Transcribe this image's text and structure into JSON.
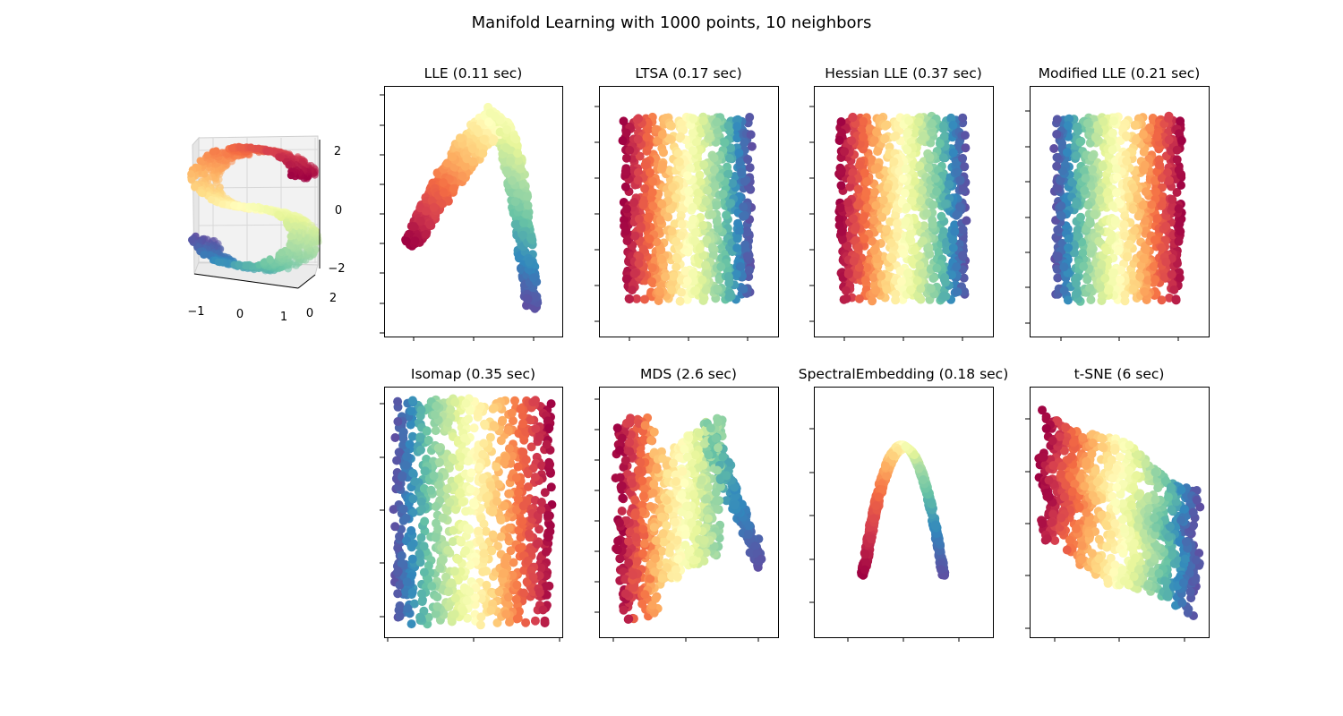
{
  "figure_title": "Manifold Learning with 1000 points, 10 neighbors",
  "colors": {
    "colormap": "Spectral",
    "frame": "#000000",
    "pane": "#f0f0f0"
  },
  "chart_data": [
    {
      "type": "scatter",
      "title": "",
      "projection": "3d",
      "description_of_data": "S-curve, colored by position along curve",
      "xticks": [
        "−1",
        "0",
        "1"
      ],
      "yticks": [
        "0",
        "2"
      ],
      "zticks": [
        "−2",
        "0",
        "2"
      ],
      "xlim": [
        -1,
        1
      ],
      "ylim": [
        0,
        2
      ],
      "zlim": [
        -2,
        2
      ],
      "n_points": 1000
    },
    {
      "type": "scatter",
      "title": "LLE (0.11 sec)",
      "method": "LLE",
      "time_sec": 0.11,
      "shape": "arch",
      "n_points": 1000,
      "tick_labels": "hidden"
    },
    {
      "type": "scatter",
      "title": "LTSA (0.17 sec)",
      "method": "LTSA",
      "time_sec": 0.17,
      "shape": "rectangle",
      "color_direction": "red-left-to-blue-right",
      "n_points": 1000,
      "tick_labels": "hidden"
    },
    {
      "type": "scatter",
      "title": "Hessian LLE (0.37 sec)",
      "method": "Hessian LLE",
      "time_sec": 0.37,
      "shape": "rectangle",
      "color_direction": "red-left-to-blue-right",
      "n_points": 1000,
      "tick_labels": "hidden"
    },
    {
      "type": "scatter",
      "title": "Modified LLE (0.21 sec)",
      "method": "Modified LLE",
      "time_sec": 0.21,
      "shape": "rectangle",
      "color_direction": "blue-left-to-red-right",
      "n_points": 1000,
      "tick_labels": "hidden"
    },
    {
      "type": "scatter",
      "title": "Isomap (0.35 sec)",
      "method": "Isomap",
      "time_sec": 0.35,
      "shape": "rectangle-sparse",
      "color_direction": "blue-left-to-red-right",
      "n_points": 1000,
      "tick_labels": "hidden"
    },
    {
      "type": "scatter",
      "title": "MDS (2.6 sec)",
      "method": "MDS",
      "time_sec": 2.6,
      "shape": "curved-blob",
      "n_points": 1000,
      "tick_labels": "hidden"
    },
    {
      "type": "scatter",
      "title": "SpectralEmbedding (0.18 sec)",
      "method": "SpectralEmbedding",
      "time_sec": 0.18,
      "shape": "parabola",
      "n_points": 1000,
      "tick_labels": "hidden"
    },
    {
      "type": "scatter",
      "title": "t-SNE (6 sec)",
      "method": "t-SNE",
      "time_sec": 6,
      "shape": "twisted-band",
      "n_points": 1000,
      "tick_labels": "hidden"
    }
  ]
}
